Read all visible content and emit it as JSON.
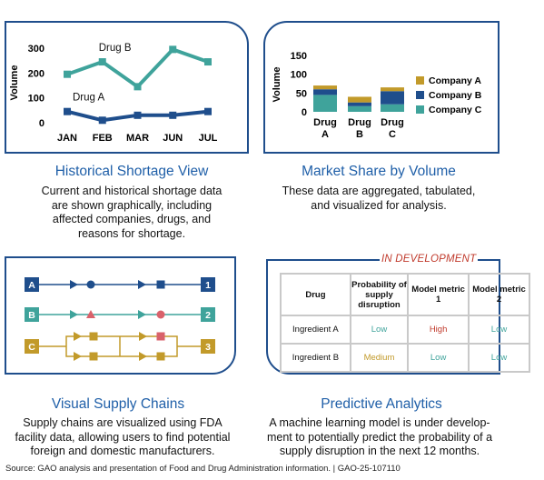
{
  "historical": {
    "title": "Historical Shortage View",
    "desc": [
      "Current and historical shortage data",
      "are shown graphically, including",
      "affected companies, drugs, and",
      "reasons for shortage."
    ],
    "chart_data": {
      "type": "line",
      "ylabel": "Volume",
      "xlabel": "",
      "ylim": [
        0,
        300
      ],
      "yticks": [
        "0",
        "100",
        "200",
        "300"
      ],
      "categories": [
        "JAN",
        "FEB",
        "MAR",
        "JUN",
        "JUL"
      ],
      "series": [
        {
          "name": "Drug B",
          "color": "#3fa39b",
          "values": [
            195,
            245,
            145,
            295,
            245
          ]
        },
        {
          "name": "Drug A",
          "color": "#1f4e8c",
          "values": [
            45,
            10,
            30,
            30,
            45
          ]
        }
      ]
    }
  },
  "market": {
    "title": "Market Share by Volume",
    "desc": [
      "These data are aggregated, tabulated,",
      "and visualized for analysis."
    ],
    "chart_data": {
      "type": "bar",
      "stacked": true,
      "ylabel": "Volume",
      "ylim": [
        0,
        150
      ],
      "yticks": [
        "0",
        "50",
        "100",
        "150"
      ],
      "categories": [
        [
          "Drug",
          "A"
        ],
        [
          "Drug",
          "B"
        ],
        [
          "Drug",
          "C"
        ]
      ],
      "series": [
        {
          "name": "Company C",
          "color": "#3fa39b",
          "values": [
            45,
            15,
            20
          ]
        },
        {
          "name": "Company B",
          "color": "#1f4e8c",
          "values": [
            15,
            10,
            35
          ]
        },
        {
          "name": "Company A",
          "color": "#c29a2a",
          "values": [
            10,
            15,
            10
          ]
        }
      ],
      "legend_order": [
        "Company A",
        "Company B",
        "Company C"
      ],
      "legend": "right"
    }
  },
  "supply": {
    "title": "Visual Supply Chains",
    "desc": [
      "Supply chains are visualized using FDA",
      "facility data, allowing users to find potential",
      "foreign and domestic manufacturers."
    ],
    "rows": [
      {
        "start": "A",
        "end": "1",
        "color": "#1f4e8c"
      },
      {
        "start": "B",
        "end": "2",
        "color": "#3fa39b"
      },
      {
        "start": "C",
        "end": "3",
        "color": "#c29a2a"
      }
    ],
    "highlight_color": "#d9626b"
  },
  "predictive": {
    "title": "Predictive Analytics",
    "status": "IN DEVELOPMENT",
    "desc": [
      "A machine learning model is under develop-",
      "ment to potentially predict the probability of a",
      "supply disruption in the next 12 months."
    ],
    "headers": [
      "Drug",
      "Probability of supply disruption",
      "Model metric 1",
      "Model metric 2"
    ],
    "rows": [
      {
        "drug": "Ingredient A",
        "prob": "Low",
        "m1": "High",
        "m2": "Low"
      },
      {
        "drug": "Ingredient B",
        "prob": "Medium",
        "m1": "Low",
        "m2": "Low"
      }
    ],
    "level_colors": {
      "Low": "#3fa39b",
      "High": "#c0392b",
      "Medium": "#c29a2a"
    }
  },
  "source": "Source: GAO analysis and presentation of Food and Drug Administration information.  |  GAO-25-107110"
}
